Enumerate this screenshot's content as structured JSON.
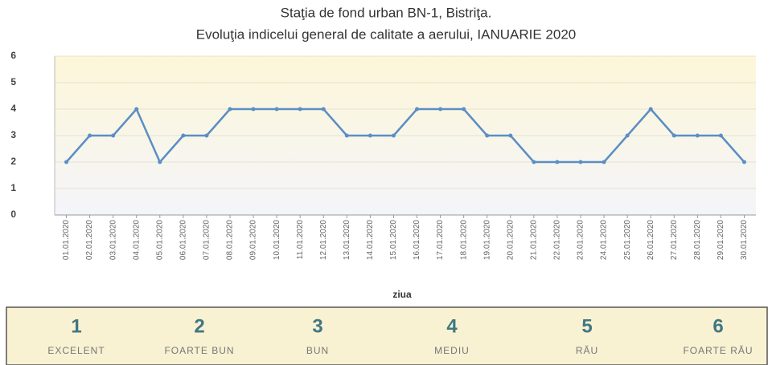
{
  "chart_data": {
    "type": "line",
    "title": "Staţia de fond urban BN-1, Bistriţa.",
    "subtitle": "Evoluţia indicelui general de calitate a aerului,  IANUARIE 2020",
    "x_label": "ziua",
    "categories": [
      "01.01.2020",
      "02.01.2020",
      "03.01.2020",
      "04.01.2020",
      "05.01.2020",
      "06.01.2020",
      "07.01.2020",
      "08.01.2020",
      "09.01.2020",
      "10.01.2020",
      "11.01.2020",
      "12.01.2020",
      "13.01.2020",
      "14.01.2020",
      "15.01.2020",
      "16.01.2020",
      "17.01.2020",
      "18.01.2020",
      "19.01.2020",
      "20.01.2020",
      "21.01.2020",
      "22.01.2020",
      "23.01.2020",
      "24.01.2020",
      "25.01.2020",
      "26.01.2020",
      "27.01.2020",
      "28.01.2020",
      "29.01.2020",
      "30.01.2020"
    ],
    "values": [
      2,
      3,
      3,
      4,
      2,
      3,
      3,
      4,
      4,
      4,
      4,
      4,
      3,
      3,
      3,
      4,
      4,
      4,
      3,
      3,
      2,
      2,
      2,
      2,
      3,
      4,
      3,
      3,
      3,
      2
    ],
    "color": "#5b8ec4",
    "ylim": [
      0,
      6
    ],
    "yticks": [
      0,
      1,
      2,
      3,
      4,
      5,
      6
    ],
    "grid": true
  },
  "scale": [
    {
      "value": 1,
      "label": "EXCELENT"
    },
    {
      "value": 2,
      "label": "FOARTE BUN"
    },
    {
      "value": 3,
      "label": "BUN"
    },
    {
      "value": 4,
      "label": "MEDIU"
    },
    {
      "value": 5,
      "label": "RĂU"
    },
    {
      "value": 6,
      "label": "FOARTE RĂU"
    }
  ]
}
